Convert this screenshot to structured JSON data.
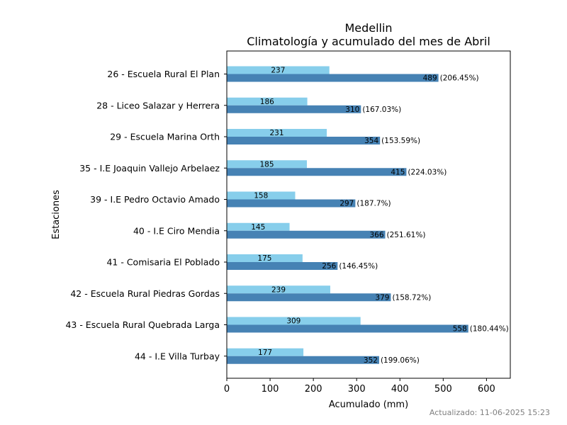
{
  "chart_data": {
    "type": "bar",
    "orientation": "horizontal",
    "title": "Medellin",
    "subtitle": "Climatología y acumulado del mes de Abril",
    "xlabel": "Acumulado (mm)",
    "ylabel": "Estaciones",
    "xlim": [
      0,
      655
    ],
    "xticks": [
      0,
      100,
      200,
      300,
      400,
      500,
      600
    ],
    "grid": false,
    "categories": [
      "26 - Escuela Rural El Plan",
      "28 - Liceo Salazar y Herrera",
      "29 - Escuela Marina Orth",
      "35 - I.E Joaquin Vallejo Arbelaez ",
      "39 - I.E Pedro Octavio Amado",
      "40 - I.E Ciro Mendia",
      "41 - Comisaria El Poblado",
      "42 - Escuela Rural Piedras Gordas",
      "43 - Escuela Rural Quebrada Larga",
      "44 - I.E Villa Turbay"
    ],
    "series": [
      {
        "key": "climatologia",
        "color": "#87CEEB",
        "values": [
          237,
          186,
          231,
          185,
          158,
          145,
          175,
          239,
          309,
          177
        ]
      },
      {
        "key": "acumulado",
        "color": "#4682B4",
        "values": [
          489,
          310,
          354,
          415,
          297,
          366,
          256,
          379,
          558,
          352
        ],
        "percent_labels": [
          "(206.45%)",
          "(167.03%)",
          "(153.59%)",
          "(224.03%)",
          "(187.7%)",
          "(251.61%)",
          "(146.45%)",
          "(158.72%)",
          "(180.44%)",
          "(199.06%)"
        ]
      }
    ]
  },
  "footer": {
    "updated": "Actualizado: 11-06-2025 15:23"
  }
}
